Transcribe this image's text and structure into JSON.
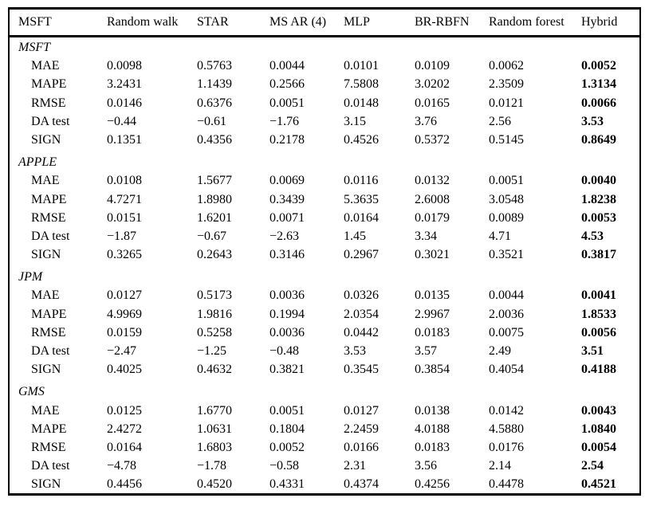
{
  "page": {
    "background": "#ffffff",
    "text_color": "#000000",
    "border_color": "#000000"
  },
  "table": {
    "header": [
      "MSFT",
      "Random walk",
      "STAR",
      "MS AR (4)",
      "MLP",
      "BR-RBFN",
      "Random forest",
      "Hybrid"
    ],
    "bold_column_label": "Hybrid",
    "metric_names": [
      "MAE",
      "MAPE",
      "RMSE",
      "DA test",
      "SIGN"
    ],
    "groups": [
      {
        "label": "MSFT",
        "rows": [
          {
            "label": "MAE",
            "values": [
              "0.0098",
              "0.5763",
              "0.0044",
              "0.0101",
              "0.0109",
              "0.0062",
              "0.0052"
            ]
          },
          {
            "label": "MAPE",
            "values": [
              "3.2431",
              "1.1439",
              "0.2566",
              "7.5808",
              "3.0202",
              "2.3509",
              "1.3134"
            ]
          },
          {
            "label": "RMSE",
            "values": [
              "0.0146",
              "0.6376",
              "0.0051",
              "0.0148",
              "0.0165",
              "0.0121",
              "0.0066"
            ]
          },
          {
            "label": "DA test",
            "values": [
              "−0.44",
              "−0.61",
              "−1.76",
              "3.15",
              "3.76",
              "2.56",
              "3.53"
            ]
          },
          {
            "label": "SIGN",
            "values": [
              "0.1351",
              "0.4356",
              "0.2178",
              "0.4526",
              "0.5372",
              "0.5145",
              "0.8649"
            ]
          }
        ]
      },
      {
        "label": "APPLE",
        "rows": [
          {
            "label": "MAE",
            "values": [
              "0.0108",
              "1.5677",
              "0.0069",
              "0.0116",
              "0.0132",
              "0.0051",
              "0.0040"
            ]
          },
          {
            "label": "MAPE",
            "values": [
              "4.7271",
              "1.8980",
              "0.3439",
              "5.3635",
              "2.6008",
              "3.0548",
              "1.8238"
            ]
          },
          {
            "label": "RMSE",
            "values": [
              "0.0151",
              "1.6201",
              "0.0071",
              "0.0164",
              "0.0179",
              "0.0089",
              "0.0053"
            ]
          },
          {
            "label": "DA test",
            "values": [
              "−1.87",
              "−0.67",
              "−2.63",
              "1.45",
              "3.34",
              "4.71",
              "4.53"
            ]
          },
          {
            "label": "SIGN",
            "values": [
              "0.3265",
              "0.2643",
              "0.3146",
              "0.2967",
              "0.3021",
              "0.3521",
              "0.3817"
            ]
          }
        ]
      },
      {
        "label": "JPM",
        "rows": [
          {
            "label": "MAE",
            "values": [
              "0.0127",
              "0.5173",
              "0.0036",
              "0.0326",
              "0.0135",
              "0.0044",
              "0.0041"
            ]
          },
          {
            "label": "MAPE",
            "values": [
              "4.9969",
              "1.9816",
              "0.1994",
              "2.0354",
              "2.9967",
              "2.0036",
              "1.8533"
            ]
          },
          {
            "label": "RMSE",
            "values": [
              "0.0159",
              "0.5258",
              "0.0036",
              "0.0442",
              "0.0183",
              "0.0075",
              "0.0056"
            ]
          },
          {
            "label": "DA test",
            "values": [
              "−2.47",
              "−1.25",
              "−0.48",
              "3.53",
              "3.57",
              "2.49",
              "3.51"
            ]
          },
          {
            "label": "SIGN",
            "values": [
              "0.4025",
              "0.4632",
              "0.3821",
              "0.3545",
              "0.3854",
              "0.4054",
              "0.4188"
            ]
          }
        ]
      },
      {
        "label": "GMS",
        "rows": [
          {
            "label": "MAE",
            "values": [
              "0.0125",
              "1.6770",
              "0.0051",
              "0.0127",
              "0.0138",
              "0.0142",
              "0.0043"
            ]
          },
          {
            "label": "MAPE",
            "values": [
              "2.4272",
              "1.0631",
              "0.1804",
              "2.2459",
              "4.0188",
              "4.5880",
              "1.0840"
            ]
          },
          {
            "label": "RMSE",
            "values": [
              "0.0164",
              "1.6803",
              "0.0052",
              "0.0166",
              "0.0183",
              "0.0176",
              "0.0054"
            ]
          },
          {
            "label": "DA test",
            "values": [
              "−4.78",
              "−1.78",
              "−0.58",
              "2.31",
              "3.56",
              "2.14",
              "2.54"
            ]
          },
          {
            "label": "SIGN",
            "values": [
              "0.4456",
              "0.4520",
              "0.4331",
              "0.4374",
              "0.4256",
              "0.4478",
              "0.4521"
            ]
          }
        ]
      }
    ]
  }
}
